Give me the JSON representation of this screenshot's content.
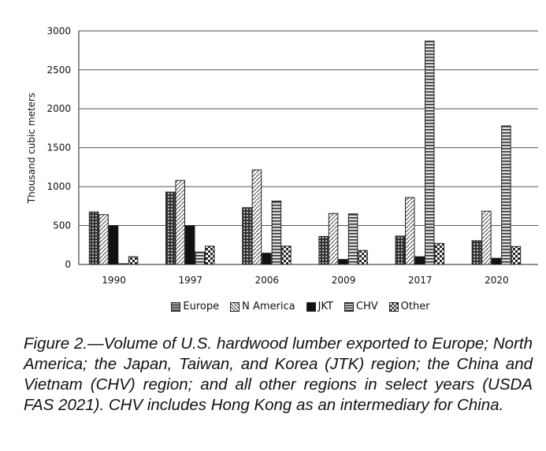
{
  "chart_data": {
    "type": "bar",
    "title": "",
    "xlabel": "",
    "ylabel": "Thousand cubic meters",
    "ylim": [
      0,
      3000
    ],
    "yticks": [
      0,
      500,
      1000,
      1500,
      2000,
      2500,
      3000
    ],
    "grid": true,
    "legend_placement": "bottom",
    "categories": [
      "1990",
      "1997",
      "2006",
      "2009",
      "2017",
      "2020"
    ],
    "series": [
      {
        "name": "Europe",
        "pattern": "dotted-grid",
        "values": [
          675,
          930,
          730,
          360,
          365,
          305
        ]
      },
      {
        "name": "N America",
        "pattern": "diagonal-hatch",
        "values": [
          640,
          1080,
          1215,
          655,
          860,
          685
        ]
      },
      {
        "name": "JKT",
        "pattern": "solid-black",
        "values": [
          500,
          500,
          145,
          65,
          100,
          80
        ]
      },
      {
        "name": "CHV",
        "pattern": "horizontal-lines",
        "values": [
          10,
          160,
          815,
          650,
          2870,
          1780
        ]
      },
      {
        "name": "Other",
        "pattern": "checker",
        "values": [
          100,
          235,
          235,
          180,
          270,
          230
        ]
      }
    ]
  },
  "caption": "Figure 2.—Volume of U.S. hardwood lumber exported to Europe; North America; the Japan, Taiwan, and Korea (JTK) region; the China and Vietnam (CHV) region; and all other regions in select years (USDA FAS 2021). CHV includes Hong Kong as an intermediary for China."
}
